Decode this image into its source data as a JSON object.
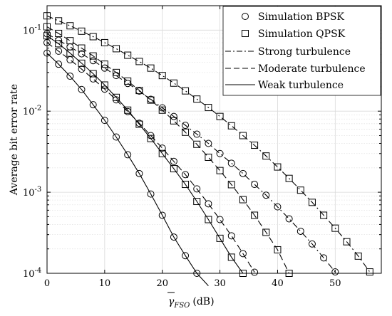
{
  "chart_data": {
    "type": "line",
    "xlabel_symbol": "γ",
    "xlabel_subscript": "FSO",
    "xlabel_unit": "(dB)",
    "ylabel": "Average bit error rate",
    "xlim": [
      0,
      58
    ],
    "ylim": [
      0.0001,
      0.2
    ],
    "yscale": "log",
    "grid": true,
    "xticks": [
      0,
      10,
      20,
      30,
      40,
      50
    ],
    "yticks": [
      {
        "value": 0.1,
        "base": "10",
        "exp": "-1"
      },
      {
        "value": 0.01,
        "base": "10",
        "exp": "-2"
      },
      {
        "value": 0.001,
        "base": "10",
        "exp": "-3"
      },
      {
        "value": 0.0001,
        "base": "10",
        "exp": "-4"
      }
    ],
    "legend": {
      "position": "top-right",
      "entries": [
        {
          "label": "Simulation BPSK",
          "marker": "circle",
          "line": "none"
        },
        {
          "label": "Simulation QPSK",
          "marker": "square",
          "line": "none"
        },
        {
          "label": "Strong turbulence",
          "marker": "none",
          "line": "dashdot"
        },
        {
          "label": "Moderate turbulence",
          "marker": "none",
          "line": "dashed"
        },
        {
          "label": "Weak turbulence",
          "marker": "none",
          "line": "solid"
        }
      ]
    },
    "series": [
      {
        "modulation": "BPSK",
        "turbulence": "weak",
        "line": "solid",
        "marker": "circle",
        "x": [
          0,
          2,
          4,
          6,
          8,
          10,
          12,
          14,
          16,
          18,
          20,
          22,
          24,
          26,
          28
        ],
        "y": [
          0.052,
          0.038,
          0.027,
          0.0185,
          0.012,
          0.0077,
          0.0048,
          0.0029,
          0.0017,
          0.00095,
          0.00052,
          0.00028,
          0.000165,
          0.0001,
          7e-05
        ]
      },
      {
        "modulation": "QPSK",
        "turbulence": "weak",
        "line": "solid",
        "marker": "square",
        "x": [
          0,
          2,
          4,
          6,
          8,
          10,
          12,
          14,
          16,
          18,
          20,
          22,
          24,
          26,
          28,
          30,
          32,
          34
        ],
        "y": [
          0.085,
          0.068,
          0.052,
          0.039,
          0.029,
          0.021,
          0.0148,
          0.0103,
          0.0069,
          0.0046,
          0.003,
          0.00195,
          0.00125,
          0.00077,
          0.00046,
          0.00027,
          0.000158,
          0.0001
        ]
      },
      {
        "modulation": "BPSK",
        "turbulence": "moderate",
        "line": "dashed",
        "marker": "circle",
        "x": [
          0,
          2,
          4,
          6,
          8,
          10,
          12,
          14,
          16,
          18,
          20,
          22,
          24,
          26,
          28,
          30,
          32,
          34,
          36
        ],
        "y": [
          0.07,
          0.055,
          0.043,
          0.033,
          0.025,
          0.0187,
          0.0138,
          0.0099,
          0.0071,
          0.005,
          0.0035,
          0.0024,
          0.00165,
          0.0011,
          0.00072,
          0.00046,
          0.00029,
          0.000175,
          0.000103
        ]
      },
      {
        "modulation": "QPSK",
        "turbulence": "moderate",
        "line": "dashed",
        "marker": "square",
        "x": [
          0,
          2,
          4,
          6,
          8,
          10,
          12,
          14,
          16,
          18,
          20,
          22,
          24,
          26,
          28,
          30,
          32,
          34,
          36,
          38,
          40,
          42
        ],
        "y": [
          0.11,
          0.091,
          0.074,
          0.06,
          0.048,
          0.038,
          0.03,
          0.0235,
          0.018,
          0.0137,
          0.0103,
          0.0076,
          0.0055,
          0.0039,
          0.0027,
          0.00185,
          0.00124,
          0.00081,
          0.00052,
          0.00032,
          0.000195,
          0.0001
        ]
      },
      {
        "modulation": "BPSK",
        "turbulence": "strong",
        "line": "dashdot",
        "marker": "circle",
        "x": [
          0,
          2,
          4,
          6,
          8,
          10,
          12,
          14,
          16,
          18,
          20,
          22,
          24,
          26,
          28,
          30,
          32,
          34,
          36,
          38,
          40,
          42,
          44,
          46,
          48,
          50
        ],
        "y": [
          0.09,
          0.075,
          0.062,
          0.051,
          0.042,
          0.034,
          0.0275,
          0.022,
          0.0177,
          0.014,
          0.011,
          0.0086,
          0.0067,
          0.0052,
          0.004,
          0.003,
          0.00228,
          0.0017,
          0.00125,
          0.00092,
          0.00066,
          0.00047,
          0.00033,
          0.00023,
          0.000155,
          0.000104
        ]
      },
      {
        "modulation": "QPSK",
        "turbulence": "strong",
        "line": "dashdot",
        "marker": "square",
        "x": [
          0,
          2,
          4,
          6,
          8,
          10,
          12,
          14,
          16,
          18,
          20,
          22,
          24,
          26,
          28,
          30,
          32,
          34,
          36,
          38,
          40,
          42,
          44,
          46,
          48,
          50,
          52,
          54,
          56
        ],
        "y": [
          0.15,
          0.13,
          0.113,
          0.097,
          0.083,
          0.07,
          0.059,
          0.049,
          0.041,
          0.034,
          0.0275,
          0.0222,
          0.0178,
          0.0141,
          0.0111,
          0.0086,
          0.0066,
          0.005,
          0.0038,
          0.0028,
          0.00205,
          0.00148,
          0.00106,
          0.00075,
          0.00052,
          0.00036,
          0.000245,
          0.000163,
          0.000104
        ]
      }
    ]
  }
}
